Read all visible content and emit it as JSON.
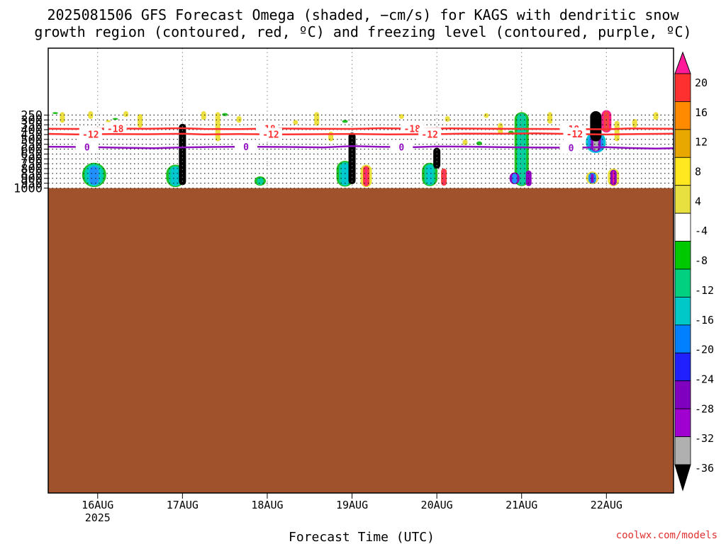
{
  "chart_data": {
    "type": "heatmap",
    "title_line1": "2025081506 GFS Forecast Omega (shaded, −cm/s) for KAGS with dendritic snow",
    "title_line2": "growth region (contoured, red, ºC) and freezing level (contoured, purple, ºC)",
    "xlabel": "Forecast Time (UTC)",
    "watermark": "coolwx.com/models",
    "x_range_hours": [
      -14,
      163
    ],
    "y_range_hpa": [
      200,
      1020
    ],
    "y_scale": "pressure",
    "grid": true,
    "x_ticks": [
      {
        "hours": 0,
        "label": "16AUG",
        "sublabel": "2025"
      },
      {
        "hours": 24,
        "label": "17AUG",
        "sublabel": ""
      },
      {
        "hours": 48,
        "label": "18AUG",
        "sublabel": ""
      },
      {
        "hours": 72,
        "label": "19AUG",
        "sublabel": ""
      },
      {
        "hours": 96,
        "label": "20AUG",
        "sublabel": ""
      },
      {
        "hours": 120,
        "label": "21AUG",
        "sublabel": ""
      },
      {
        "hours": 144,
        "label": "22AUG",
        "sublabel": ""
      }
    ],
    "y_ticks": [
      "250",
      "300",
      "350",
      "400",
      "450",
      "500",
      "550",
      "600",
      "650",
      "700",
      "750",
      "800",
      "850",
      "900",
      "950",
      "1000"
    ],
    "colorbar": {
      "labels": [
        "20",
        "16",
        "12",
        "8",
        "4",
        "-4",
        "-8",
        "-12",
        "-16",
        "-20",
        "-24",
        "-28",
        "-32",
        "-36"
      ],
      "colors": [
        "#ff1a9a",
        "#ff3030",
        "#ff8a00",
        "#e8a800",
        "#ffe820",
        "#e8e040",
        "#ffffff",
        "#00c800",
        "#00d080",
        "#00c8c8",
        "#0080ff",
        "#2020ff",
        "#8000c0",
        "#a000d0",
        "#b0b0b0",
        "#000000"
      ]
    },
    "contours": [
      {
        "label": "-18",
        "color": "#ff3030",
        "points": [
          [
            -14,
            390
          ],
          [
            -6,
            392
          ],
          [
            4,
            388
          ],
          [
            14,
            390
          ],
          [
            24,
            385
          ],
          [
            30,
            392
          ],
          [
            40,
            394
          ],
          [
            50,
            388
          ],
          [
            60,
            390
          ],
          [
            72,
            392
          ],
          [
            80,
            385
          ],
          [
            90,
            390
          ],
          [
            100,
            387
          ],
          [
            112,
            390
          ],
          [
            124,
            392
          ],
          [
            134,
            394
          ],
          [
            144,
            396
          ],
          [
            150,
            388
          ],
          [
            163,
            390
          ]
        ],
        "label_hours": [
          5,
          48,
          89,
          134
        ]
      },
      {
        "label": "-12",
        "color": "#ff3030",
        "points": [
          [
            -14,
            443
          ],
          [
            -6,
            448
          ],
          [
            4,
            445
          ],
          [
            14,
            447
          ],
          [
            24,
            442
          ],
          [
            30,
            448
          ],
          [
            40,
            445
          ],
          [
            52,
            448
          ],
          [
            64,
            446
          ],
          [
            72,
            444
          ],
          [
            82,
            448
          ],
          [
            96,
            446
          ],
          [
            104,
            440
          ],
          [
            114,
            442
          ],
          [
            124,
            438
          ],
          [
            134,
            444
          ],
          [
            144,
            450
          ],
          [
            150,
            446
          ],
          [
            163,
            442
          ]
        ],
        "label_hours": [
          -2,
          49,
          94,
          135
        ]
      },
      {
        "label": "0",
        "color": "#9010c0",
        "points": [
          [
            -14,
            575
          ],
          [
            -4,
            578
          ],
          [
            6,
            585
          ],
          [
            16,
            590
          ],
          [
            24,
            582
          ],
          [
            32,
            578
          ],
          [
            42,
            575
          ],
          [
            54,
            578
          ],
          [
            64,
            582
          ],
          [
            72,
            568
          ],
          [
            80,
            576
          ],
          [
            90,
            580
          ],
          [
            96,
            572
          ],
          [
            104,
            574
          ],
          [
            114,
            580
          ],
          [
            124,
            583
          ],
          [
            134,
            585
          ],
          [
            144,
            580
          ],
          [
            150,
            588
          ],
          [
            158,
            594
          ],
          [
            163,
            590
          ]
        ],
        "label_hours": [
          -3,
          42,
          86,
          134
        ]
      }
    ],
    "surface_band_color": "#a0522d",
    "updrafts": [
      {
        "hours": 24,
        "top_hpa": 340,
        "bottom_hpa": 970
      },
      {
        "hours": 72,
        "top_hpa": 430,
        "bottom_hpa": 960
      },
      {
        "hours": 96,
        "top_hpa": 585,
        "bottom_hpa": 800
      },
      {
        "hours": 141,
        "top_hpa": 210,
        "bottom_hpa": 520
      }
    ]
  }
}
